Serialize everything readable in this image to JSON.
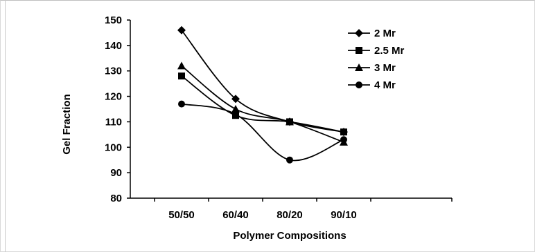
{
  "chart_data": {
    "type": "line",
    "smooth": true,
    "categories": [
      "50/50",
      "60/40",
      "80/20",
      "90/10"
    ],
    "series": [
      {
        "name": "2 Mr",
        "values": [
          146,
          119,
          110,
          106
        ],
        "marker": "diamond"
      },
      {
        "name": "2.5 Mr",
        "values": [
          128,
          112.5,
          110,
          106
        ],
        "marker": "square"
      },
      {
        "name": "3 Mr",
        "values": [
          132,
          115,
          110,
          102
        ],
        "marker": "triangle"
      },
      {
        "name": "4 Mr",
        "values": [
          117,
          113,
          95,
          103
        ],
        "marker": "circle"
      }
    ],
    "ylim": [
      80,
      150
    ],
    "yticks": [
      80,
      90,
      100,
      110,
      120,
      130,
      140,
      150
    ],
    "xlabel": "Polymer Compositions",
    "ylabel": "Gel Fraction",
    "legend": "top-right",
    "grid": false,
    "line_color": "#000000"
  }
}
